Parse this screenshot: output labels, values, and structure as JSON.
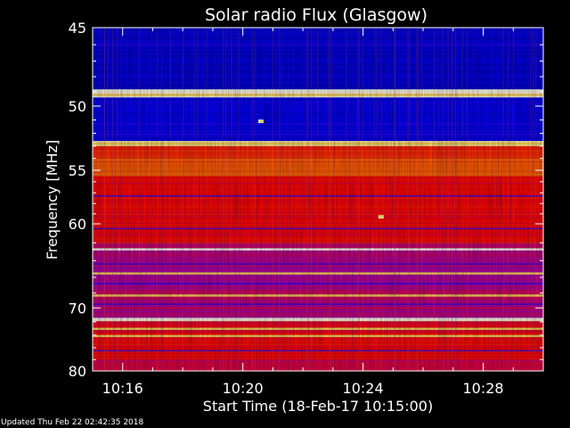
{
  "chart_data": {
    "type": "heatmap",
    "title": "Solar radio Flux (Glasgow)",
    "xlabel": "Start Time (18-Feb-17 10:15:00)",
    "ylabel": "Frequency [MHz]",
    "x_ticks": [
      "10:16",
      "10:20",
      "10:24",
      "10:28"
    ],
    "x_tick_minutes": [
      16,
      20,
      24,
      28
    ],
    "x_range_minutes": [
      15.0,
      30.0
    ],
    "y_ticks": [
      45,
      50,
      55,
      60,
      70,
      80
    ],
    "y_range": [
      45,
      80
    ],
    "y_scale": "reciprocal",
    "colormap": [
      "#000080",
      "#0000ff",
      "#8000ff",
      "#ff0000",
      "#ff8000",
      "#ffff80",
      "#ffffff"
    ],
    "bands": [
      {
        "f0": 45.0,
        "f1": 48.9,
        "level": 0.12
      },
      {
        "f0": 48.9,
        "f1": 49.4,
        "level": 0.95
      },
      {
        "f0": 49.4,
        "f1": 52.6,
        "level": 0.15
      },
      {
        "f0": 52.6,
        "f1": 53.0,
        "level": 0.9
      },
      {
        "f0": 53.0,
        "f1": 54.0,
        "level": 0.55
      },
      {
        "f0": 54.0,
        "f1": 55.5,
        "level": 0.62
      },
      {
        "f0": 55.5,
        "f1": 62.0,
        "level": 0.5
      },
      {
        "f0": 62.0,
        "f1": 63.5,
        "level": 0.42
      },
      {
        "f0": 63.5,
        "f1": 67.0,
        "level": 0.4
      },
      {
        "f0": 67.0,
        "f1": 71.4,
        "level": 0.42
      },
      {
        "f0": 71.4,
        "f1": 71.9,
        "level": 0.95
      },
      {
        "f0": 71.9,
        "f1": 73.5,
        "level": 0.48
      },
      {
        "f0": 73.5,
        "f1": 78.0,
        "level": 0.5
      },
      {
        "f0": 78.0,
        "f1": 80.0,
        "level": 0.45
      }
    ],
    "bright_lines_mhz": [
      48.9,
      49.2,
      52.8,
      62.7,
      65.5,
      68.3,
      71.6,
      73.0,
      74.1
    ],
    "dark_lines_mhz": [
      46.0,
      51.3,
      52.1,
      57.3,
      60.5,
      64.4,
      66.8,
      69.5,
      76.5
    ],
    "hot_spots": [
      {
        "minute": 20.6,
        "mhz": 51.1
      },
      {
        "minute": 24.6,
        "mhz": 59.3
      }
    ]
  },
  "footer": {
    "updated": "Updated Thu Feb 22 02:42:35 2018"
  }
}
